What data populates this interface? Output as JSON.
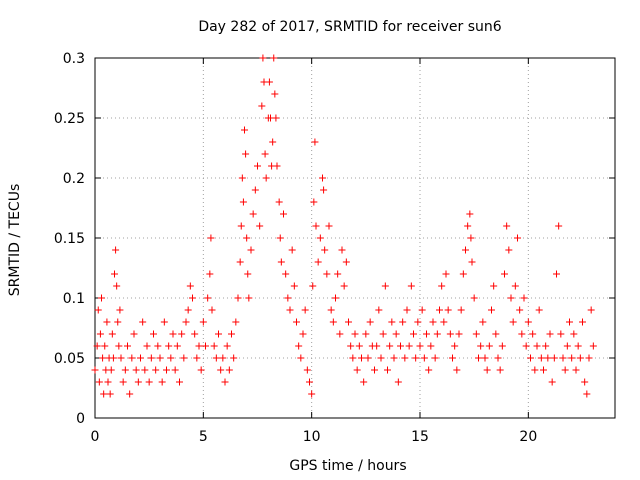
{
  "chart_data": {
    "type": "scatter",
    "title": "Day 282 of 2017, SRMTID for receiver sun6",
    "xlabel": "GPS time / hours",
    "ylabel": "SRMTID / TECUs",
    "xlim": [
      0,
      24
    ],
    "ylim": [
      0,
      0.3
    ],
    "xticks": [
      0,
      5,
      10,
      15,
      20
    ],
    "xtick_labels": [
      "0",
      "5",
      "10",
      "15",
      "20"
    ],
    "yticks": [
      0,
      0.05,
      0.1,
      0.15,
      0.2,
      0.25,
      0.3
    ],
    "ytick_labels": [
      "0",
      "0.05",
      "0.1",
      "0.15",
      "0.2",
      "0.25",
      "0.3"
    ],
    "grid": true,
    "marker": "+",
    "marker_color": "#ff0000",
    "series": [
      {
        "name": "SRMTID",
        "points": [
          [
            0.0,
            0.04
          ],
          [
            0.1,
            0.06
          ],
          [
            0.15,
            0.09
          ],
          [
            0.2,
            0.03
          ],
          [
            0.25,
            0.07
          ],
          [
            0.3,
            0.1
          ],
          [
            0.35,
            0.05
          ],
          [
            0.4,
            0.02
          ],
          [
            0.45,
            0.06
          ],
          [
            0.5,
            0.04
          ],
          [
            0.55,
            0.08
          ],
          [
            0.6,
            0.03
          ],
          [
            0.65,
            0.05
          ],
          [
            0.7,
            0.02
          ],
          [
            0.75,
            0.04
          ],
          [
            0.8,
            0.07
          ],
          [
            0.85,
            0.05
          ],
          [
            0.9,
            0.12
          ],
          [
            0.95,
            0.14
          ],
          [
            1.0,
            0.11
          ],
          [
            1.05,
            0.08
          ],
          [
            1.1,
            0.06
          ],
          [
            1.15,
            0.09
          ],
          [
            1.2,
            0.05
          ],
          [
            1.3,
            0.03
          ],
          [
            1.4,
            0.04
          ],
          [
            1.5,
            0.06
          ],
          [
            1.6,
            0.02
          ],
          [
            1.7,
            0.05
          ],
          [
            1.8,
            0.07
          ],
          [
            1.9,
            0.04
          ],
          [
            2.0,
            0.03
          ],
          [
            2.1,
            0.05
          ],
          [
            2.2,
            0.08
          ],
          [
            2.3,
            0.04
          ],
          [
            2.4,
            0.06
          ],
          [
            2.5,
            0.03
          ],
          [
            2.6,
            0.05
          ],
          [
            2.7,
            0.07
          ],
          [
            2.8,
            0.04
          ],
          [
            2.9,
            0.06
          ],
          [
            3.0,
            0.05
          ],
          [
            3.1,
            0.03
          ],
          [
            3.2,
            0.08
          ],
          [
            3.3,
            0.04
          ],
          [
            3.4,
            0.06
          ],
          [
            3.5,
            0.05
          ],
          [
            3.6,
            0.07
          ],
          [
            3.7,
            0.04
          ],
          [
            3.8,
            0.06
          ],
          [
            3.9,
            0.03
          ],
          [
            4.0,
            0.07
          ],
          [
            4.1,
            0.05
          ],
          [
            4.2,
            0.08
          ],
          [
            4.3,
            0.09
          ],
          [
            4.4,
            0.11
          ],
          [
            4.5,
            0.1
          ],
          [
            4.6,
            0.07
          ],
          [
            4.7,
            0.05
          ],
          [
            4.8,
            0.06
          ],
          [
            4.9,
            0.04
          ],
          [
            5.0,
            0.08
          ],
          [
            5.1,
            0.06
          ],
          [
            5.2,
            0.1
          ],
          [
            5.3,
            0.12
          ],
          [
            5.35,
            0.15
          ],
          [
            5.4,
            0.09
          ],
          [
            5.5,
            0.06
          ],
          [
            5.6,
            0.05
          ],
          [
            5.7,
            0.07
          ],
          [
            5.8,
            0.04
          ],
          [
            5.9,
            0.05
          ],
          [
            6.0,
            0.03
          ],
          [
            6.1,
            0.06
          ],
          [
            6.2,
            0.04
          ],
          [
            6.3,
            0.07
          ],
          [
            6.4,
            0.05
          ],
          [
            6.5,
            0.08
          ],
          [
            6.6,
            0.1
          ],
          [
            6.7,
            0.13
          ],
          [
            6.75,
            0.16
          ],
          [
            6.8,
            0.2
          ],
          [
            6.85,
            0.18
          ],
          [
            6.9,
            0.24
          ],
          [
            6.95,
            0.22
          ],
          [
            7.0,
            0.15
          ],
          [
            7.05,
            0.12
          ],
          [
            7.1,
            0.1
          ],
          [
            7.2,
            0.14
          ],
          [
            7.3,
            0.17
          ],
          [
            7.4,
            0.19
          ],
          [
            7.5,
            0.21
          ],
          [
            7.6,
            0.16
          ],
          [
            7.7,
            0.26
          ],
          [
            7.75,
            0.3
          ],
          [
            7.8,
            0.28
          ],
          [
            7.85,
            0.22
          ],
          [
            7.9,
            0.2
          ],
          [
            8.0,
            0.25
          ],
          [
            8.05,
            0.28
          ],
          [
            8.1,
            0.25
          ],
          [
            8.15,
            0.21
          ],
          [
            8.2,
            0.23
          ],
          [
            8.25,
            0.3
          ],
          [
            8.3,
            0.27
          ],
          [
            8.35,
            0.25
          ],
          [
            8.4,
            0.21
          ],
          [
            8.5,
            0.18
          ],
          [
            8.55,
            0.15
          ],
          [
            8.6,
            0.13
          ],
          [
            8.7,
            0.17
          ],
          [
            8.8,
            0.12
          ],
          [
            8.9,
            0.1
          ],
          [
            9.0,
            0.09
          ],
          [
            9.1,
            0.14
          ],
          [
            9.2,
            0.11
          ],
          [
            9.3,
            0.08
          ],
          [
            9.4,
            0.06
          ],
          [
            9.5,
            0.05
          ],
          [
            9.6,
            0.07
          ],
          [
            9.7,
            0.09
          ],
          [
            9.8,
            0.04
          ],
          [
            9.9,
            0.03
          ],
          [
            10.0,
            0.02
          ],
          [
            10.05,
            0.11
          ],
          [
            10.1,
            0.18
          ],
          [
            10.15,
            0.23
          ],
          [
            10.2,
            0.16
          ],
          [
            10.3,
            0.13
          ],
          [
            10.4,
            0.15
          ],
          [
            10.5,
            0.2
          ],
          [
            10.55,
            0.19
          ],
          [
            10.6,
            0.14
          ],
          [
            10.7,
            0.12
          ],
          [
            10.8,
            0.16
          ],
          [
            10.9,
            0.09
          ],
          [
            11.0,
            0.08
          ],
          [
            11.1,
            0.1
          ],
          [
            11.2,
            0.12
          ],
          [
            11.3,
            0.07
          ],
          [
            11.4,
            0.14
          ],
          [
            11.5,
            0.11
          ],
          [
            11.6,
            0.13
          ],
          [
            11.7,
            0.08
          ],
          [
            11.8,
            0.06
          ],
          [
            11.9,
            0.05
          ],
          [
            12.0,
            0.07
          ],
          [
            12.1,
            0.04
          ],
          [
            12.2,
            0.06
          ],
          [
            12.3,
            0.05
          ],
          [
            12.4,
            0.03
          ],
          [
            12.5,
            0.07
          ],
          [
            12.6,
            0.05
          ],
          [
            12.7,
            0.08
          ],
          [
            12.8,
            0.06
          ],
          [
            12.9,
            0.04
          ],
          [
            13.0,
            0.06
          ],
          [
            13.1,
            0.09
          ],
          [
            13.2,
            0.05
          ],
          [
            13.3,
            0.07
          ],
          [
            13.4,
            0.11
          ],
          [
            13.5,
            0.04
          ],
          [
            13.6,
            0.06
          ],
          [
            13.7,
            0.08
          ],
          [
            13.8,
            0.05
          ],
          [
            13.9,
            0.07
          ],
          [
            14.0,
            0.03
          ],
          [
            14.1,
            0.06
          ],
          [
            14.2,
            0.08
          ],
          [
            14.3,
            0.05
          ],
          [
            14.4,
            0.09
          ],
          [
            14.5,
            0.06
          ],
          [
            14.6,
            0.11
          ],
          [
            14.7,
            0.07
          ],
          [
            14.8,
            0.05
          ],
          [
            14.9,
            0.08
          ],
          [
            15.0,
            0.06
          ],
          [
            15.1,
            0.09
          ],
          [
            15.2,
            0.05
          ],
          [
            15.3,
            0.07
          ],
          [
            15.4,
            0.04
          ],
          [
            15.5,
            0.06
          ],
          [
            15.6,
            0.08
          ],
          [
            15.7,
            0.05
          ],
          [
            15.8,
            0.07
          ],
          [
            15.9,
            0.09
          ],
          [
            16.0,
            0.11
          ],
          [
            16.1,
            0.08
          ],
          [
            16.2,
            0.12
          ],
          [
            16.3,
            0.09
          ],
          [
            16.4,
            0.07
          ],
          [
            16.5,
            0.05
          ],
          [
            16.6,
            0.06
          ],
          [
            16.7,
            0.04
          ],
          [
            16.8,
            0.07
          ],
          [
            16.9,
            0.09
          ],
          [
            17.0,
            0.12
          ],
          [
            17.1,
            0.14
          ],
          [
            17.2,
            0.16
          ],
          [
            17.3,
            0.17
          ],
          [
            17.35,
            0.15
          ],
          [
            17.4,
            0.13
          ],
          [
            17.5,
            0.1
          ],
          [
            17.6,
            0.07
          ],
          [
            17.7,
            0.05
          ],
          [
            17.8,
            0.06
          ],
          [
            17.9,
            0.08
          ],
          [
            18.0,
            0.05
          ],
          [
            18.1,
            0.04
          ],
          [
            18.2,
            0.06
          ],
          [
            18.3,
            0.09
          ],
          [
            18.4,
            0.11
          ],
          [
            18.5,
            0.07
          ],
          [
            18.6,
            0.05
          ],
          [
            18.7,
            0.04
          ],
          [
            18.8,
            0.06
          ],
          [
            18.9,
            0.12
          ],
          [
            19.0,
            0.16
          ],
          [
            19.1,
            0.14
          ],
          [
            19.2,
            0.1
          ],
          [
            19.3,
            0.08
          ],
          [
            19.4,
            0.11
          ],
          [
            19.5,
            0.15
          ],
          [
            19.6,
            0.09
          ],
          [
            19.7,
            0.07
          ],
          [
            19.8,
            0.1
          ],
          [
            19.9,
            0.06
          ],
          [
            20.0,
            0.08
          ],
          [
            20.1,
            0.05
          ],
          [
            20.2,
            0.07
          ],
          [
            20.3,
            0.04
          ],
          [
            20.4,
            0.06
          ],
          [
            20.5,
            0.09
          ],
          [
            20.6,
            0.05
          ],
          [
            20.7,
            0.04
          ],
          [
            20.8,
            0.06
          ],
          [
            20.9,
            0.05
          ],
          [
            21.0,
            0.07
          ],
          [
            21.1,
            0.03
          ],
          [
            21.2,
            0.05
          ],
          [
            21.3,
            0.12
          ],
          [
            21.4,
            0.16
          ],
          [
            21.5,
            0.07
          ],
          [
            21.6,
            0.05
          ],
          [
            21.7,
            0.04
          ],
          [
            21.8,
            0.06
          ],
          [
            21.9,
            0.08
          ],
          [
            22.0,
            0.05
          ],
          [
            22.1,
            0.07
          ],
          [
            22.2,
            0.04
          ],
          [
            22.3,
            0.06
          ],
          [
            22.4,
            0.05
          ],
          [
            22.5,
            0.08
          ],
          [
            22.6,
            0.03
          ],
          [
            22.7,
            0.02
          ],
          [
            22.8,
            0.05
          ],
          [
            22.9,
            0.09
          ],
          [
            23.0,
            0.06
          ]
        ]
      }
    ]
  }
}
